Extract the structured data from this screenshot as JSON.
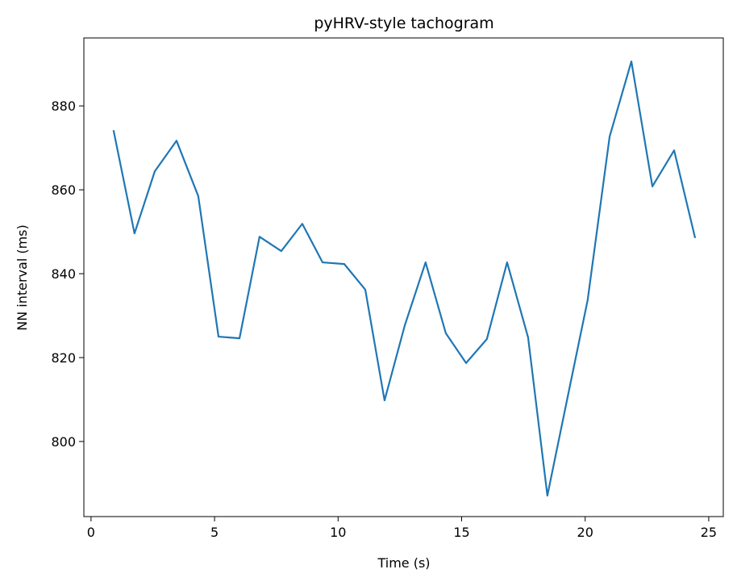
{
  "chart_data": {
    "type": "line",
    "title": "pyHRV-style tachogram",
    "x_label": "Time (s)",
    "y_label": "NN interval (ms)",
    "x": [
      0.91,
      1.76,
      2.58,
      3.46,
      4.34,
      5.16,
      6.01,
      6.82,
      7.7,
      8.55,
      9.37,
      10.25,
      11.1,
      11.88,
      12.7,
      13.54,
      14.36,
      15.18,
      16.02,
      16.84,
      17.69,
      18.47,
      19.29,
      20.1,
      20.99,
      21.87,
      22.72,
      23.6,
      24.45
    ],
    "series": [
      {
        "color": "#1f77b4",
        "values": [
          874.2,
          849.6,
          864.4,
          871.7,
          858.5,
          825.0,
          824.6,
          848.8,
          845.4,
          851.9,
          842.7,
          842.3,
          836.2,
          809.8,
          827.7,
          842.7,
          825.8,
          818.7,
          824.4,
          842.7,
          824.8,
          787.1,
          810.6,
          833.7,
          872.7,
          890.6,
          860.8,
          869.4,
          848.5
        ]
      }
    ],
    "xlim": [
      -0.29,
      25.59
    ],
    "ylim": [
      782.1,
      896.2
    ],
    "xticks": [
      0,
      5,
      10,
      15,
      20,
      25
    ],
    "yticks": [
      800,
      820,
      840,
      860,
      880
    ],
    "grid": false
  }
}
